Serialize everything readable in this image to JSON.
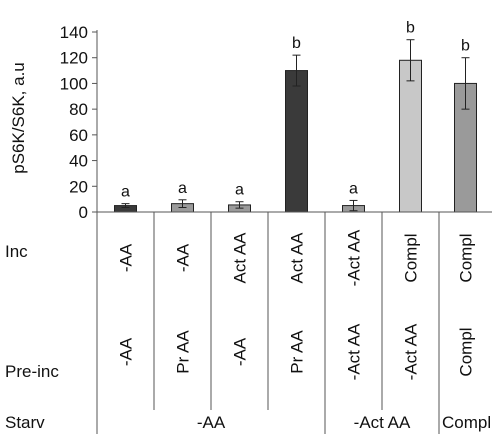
{
  "chart_data": {
    "type": "bar",
    "ylabel": "pS6K/S6K, a.u",
    "ylim": [
      0,
      140
    ],
    "yticks": [
      0,
      20,
      40,
      60,
      80,
      100,
      120,
      140
    ],
    "grid": false,
    "values": [
      5,
      6.5,
      5.5,
      110,
      5,
      118,
      100
    ],
    "errors": [
      1.5,
      3,
      2.5,
      12,
      4,
      16,
      20
    ],
    "significance": [
      "a",
      "a",
      "a",
      "b",
      "a",
      "b",
      "b"
    ],
    "colors": [
      "#3a3a3a",
      "#9a9a9a",
      "#9a9a9a",
      "#3a3a3a",
      "#9a9a9a",
      "#c8c8c8",
      "#9a9a9a"
    ],
    "row_labels": {
      "inc": "Inc",
      "preinc": "Pre-inc",
      "starv": "Starv"
    },
    "inc_labels": [
      "-AA",
      "-AA",
      "Act AA",
      "Act AA",
      "-Act AA",
      "Compl",
      "Compl"
    ],
    "preinc_labels": [
      "-AA",
      "Pr AA",
      "-AA",
      "Pr AA",
      "-Act AA",
      "-Act AA",
      "Compl"
    ],
    "starv_groups": [
      "-AA",
      "-Act AA",
      "Compl"
    ]
  }
}
